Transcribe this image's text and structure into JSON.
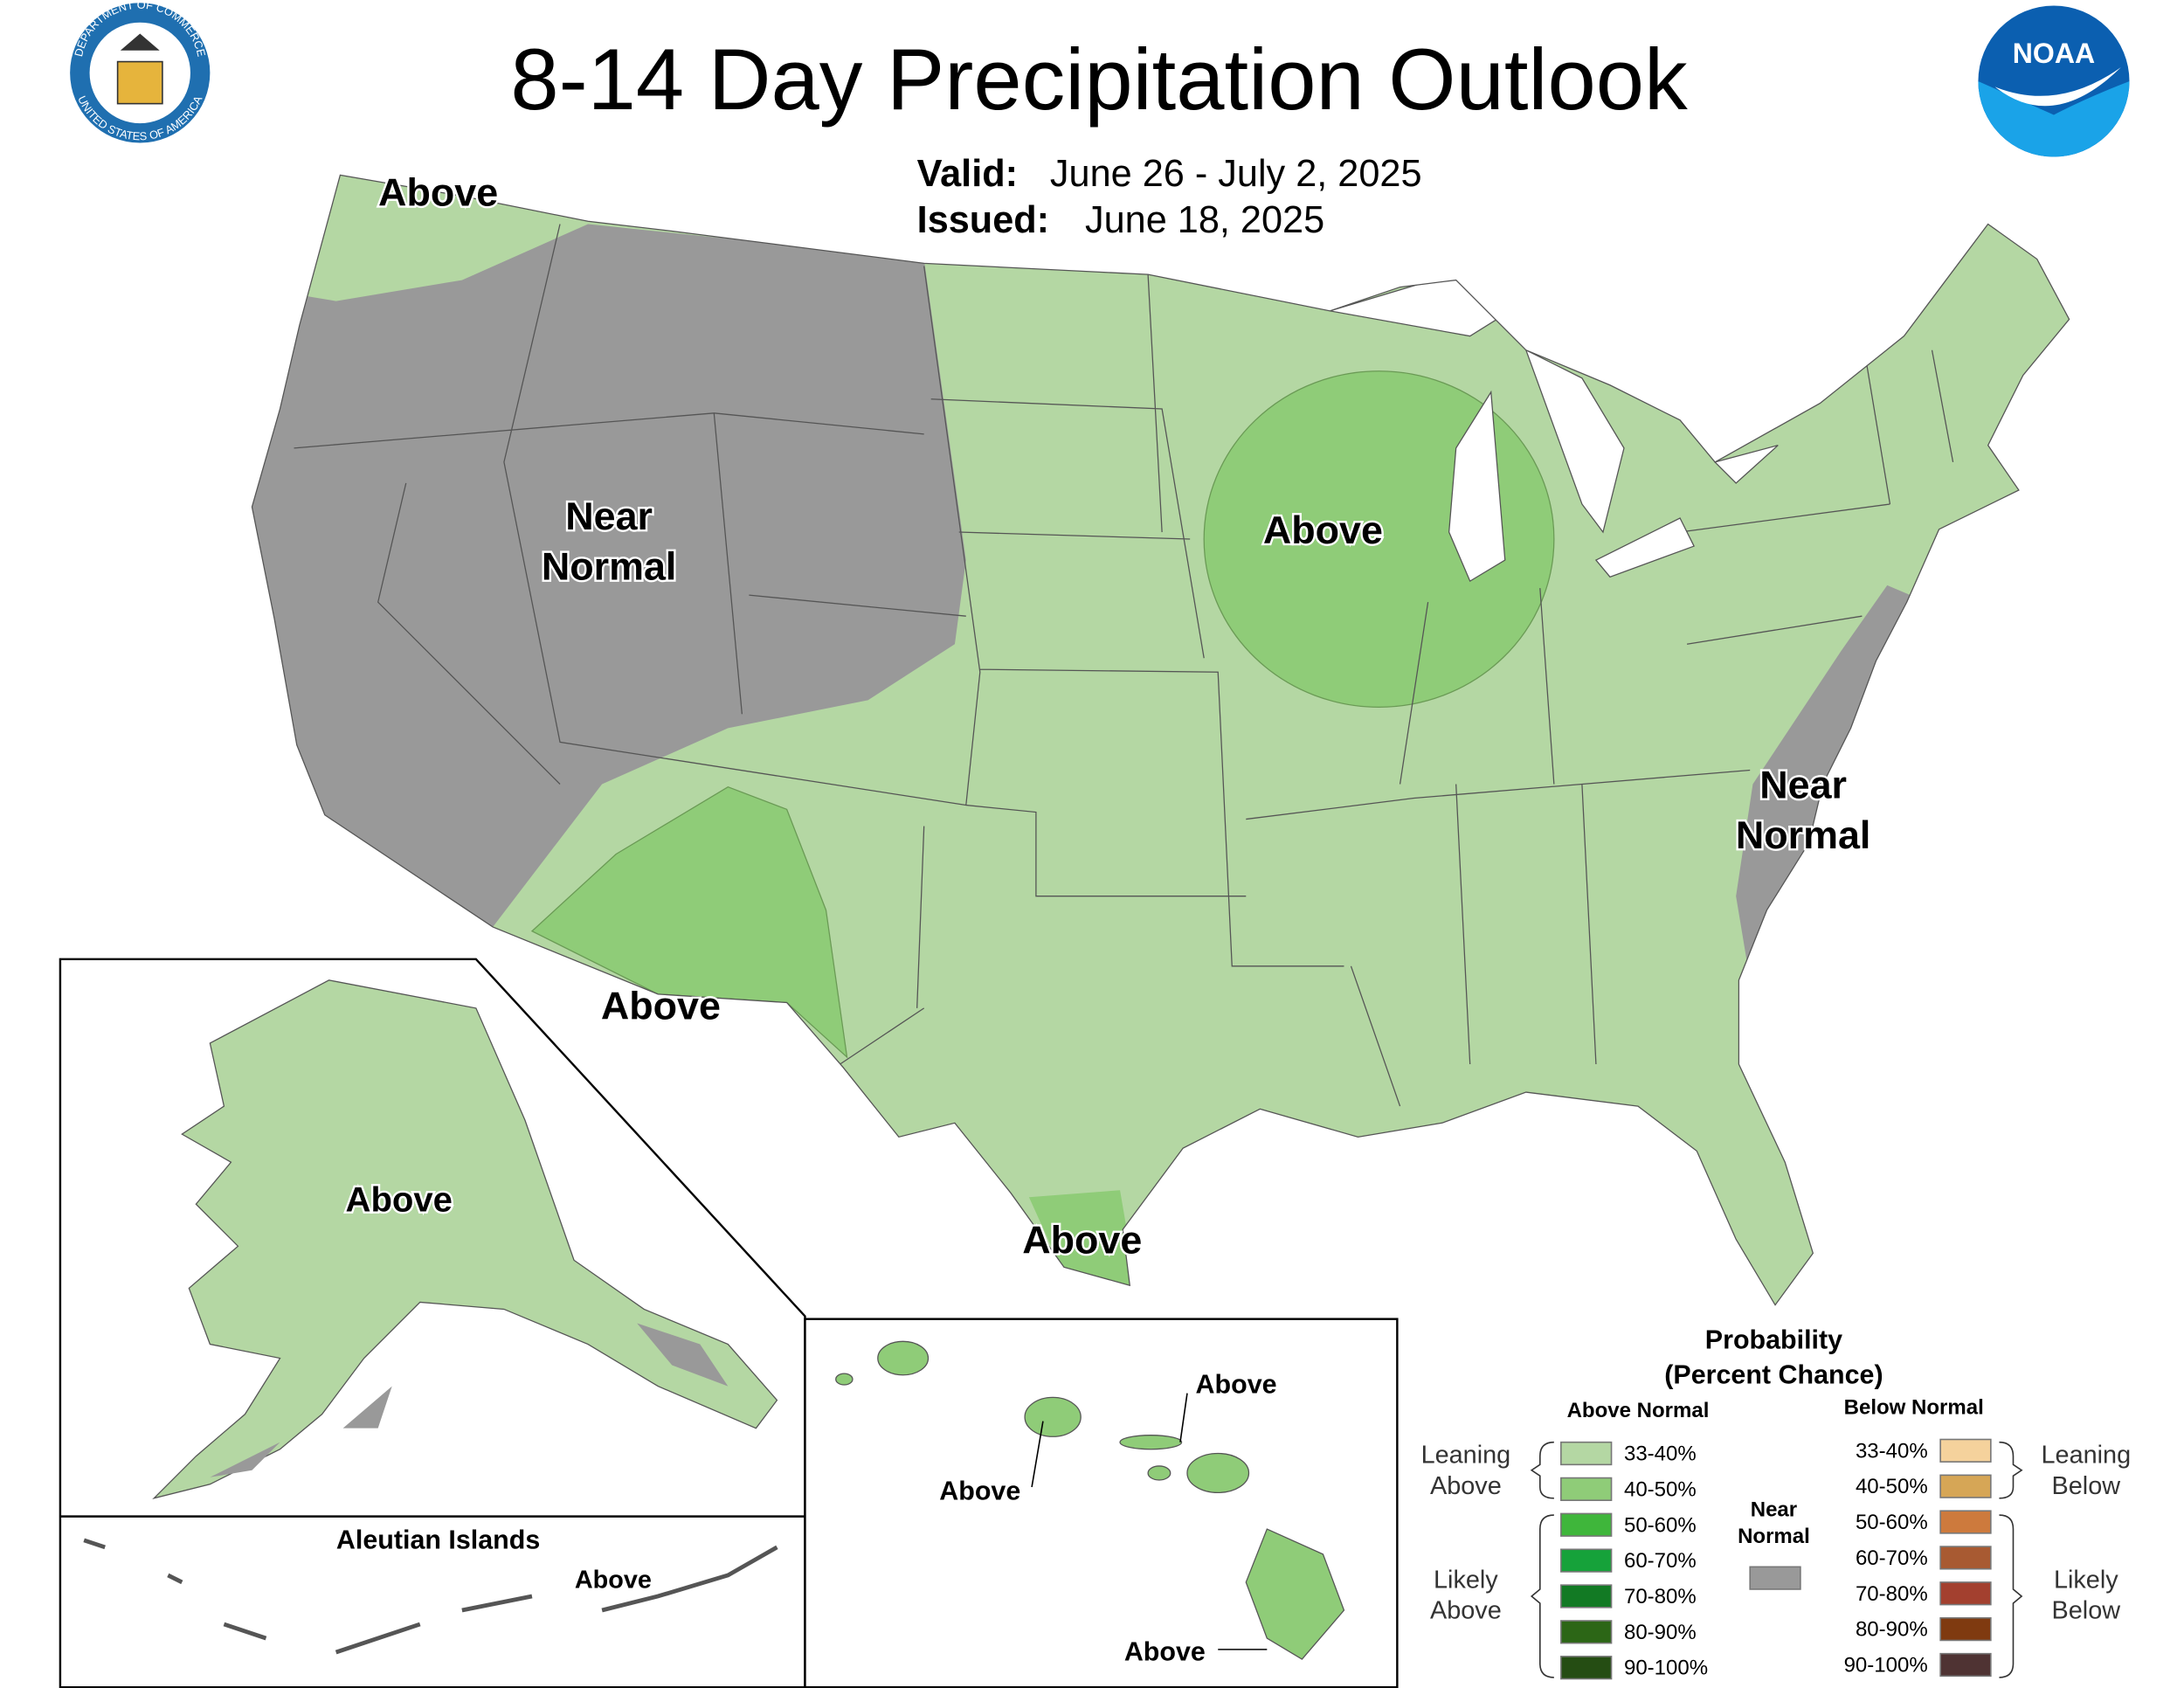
{
  "header": {
    "title": "8-14 Day Precipitation Outlook",
    "valid_label": "Valid:",
    "valid": "June 26 - July 2, 2025",
    "issued_label": "Issued:",
    "issued": "June 18, 2025"
  },
  "logos": {
    "noaa": "NOAA",
    "commerce_top": "DEPARTMENT OF COMMERCE",
    "commerce_bottom": "UNITED STATES OF AMERICA"
  },
  "map_labels": [
    {
      "lines": [
        "Above"
      ]
    },
    {
      "lines": [
        "Near",
        "Normal"
      ]
    },
    {
      "lines": [
        "Above"
      ]
    },
    {
      "lines": [
        "Near",
        "Normal"
      ]
    },
    {
      "lines": [
        "Above"
      ]
    },
    {
      "lines": [
        "Above"
      ]
    },
    {
      "lines": [
        "Above"
      ]
    },
    {
      "lines": [
        "Above"
      ]
    },
    {
      "lines": [
        "Above"
      ]
    },
    {
      "lines": [
        "Above"
      ]
    },
    {
      "lines": [
        "Above"
      ]
    }
  ],
  "insets": {
    "aleutian_title": "Aleutian Islands"
  },
  "legend": {
    "title": [
      "Probability",
      "(Percent Chance)"
    ],
    "above_heading": "Above Normal",
    "below_heading": "Below Normal",
    "near": {
      "lines": [
        "Near",
        "Normal"
      ],
      "color": "#999999"
    },
    "above_bins": [
      {
        "label": "33-40%",
        "color": "#b4d7a3"
      },
      {
        "label": "40-50%",
        "color": "#8fcc78"
      },
      {
        "label": "50-60%",
        "color": "#3fb63b"
      },
      {
        "label": "60-70%",
        "color": "#16a23a"
      },
      {
        "label": "70-80%",
        "color": "#127a24"
      },
      {
        "label": "80-90%",
        "color": "#2c6616"
      },
      {
        "label": "90-100%",
        "color": "#254d13"
      }
    ],
    "below_bins": [
      {
        "label": "33-40%",
        "color": "#f5d29c"
      },
      {
        "label": "40-50%",
        "color": "#d6a656"
      },
      {
        "label": "50-60%",
        "color": "#cd7a3d"
      },
      {
        "label": "60-70%",
        "color": "#a85a32"
      },
      {
        "label": "70-80%",
        "color": "#a3402f"
      },
      {
        "label": "80-90%",
        "color": "#7f3a10"
      },
      {
        "label": "90-100%",
        "color": "#4f3333"
      }
    ],
    "groups": {
      "leaning_above": [
        "Leaning",
        "Above"
      ],
      "likely_above": [
        "Likely",
        "Above"
      ],
      "leaning_below": [
        "Leaning",
        "Below"
      ],
      "likely_below": [
        "Likely",
        "Below"
      ]
    }
  }
}
